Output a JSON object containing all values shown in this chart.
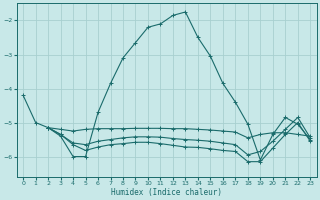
{
  "xlabel": "Humidex (Indice chaleur)",
  "xlim": [
    -0.5,
    23.5
  ],
  "ylim": [
    -6.6,
    -1.5
  ],
  "yticks": [
    -6,
    -5,
    -4,
    -3,
    -2
  ],
  "xticks": [
    0,
    1,
    2,
    3,
    4,
    5,
    6,
    7,
    8,
    9,
    10,
    11,
    12,
    13,
    14,
    15,
    16,
    17,
    18,
    19,
    20,
    21,
    22,
    23
  ],
  "bg_color": "#c8e8e8",
  "line_color": "#1a6b6b",
  "grid_color": "#a8d0d0",
  "lines": [
    {
      "x": [
        0,
        1,
        2,
        3,
        4,
        5,
        6,
        7,
        8,
        9,
        10,
        11,
        12,
        13,
        14,
        15,
        16,
        17,
        18,
        19,
        20,
        21,
        22,
        23
      ],
      "y": [
        -4.2,
        -5.0,
        -5.15,
        -5.4,
        -6.0,
        -6.0,
        -4.7,
        -3.85,
        -3.1,
        -2.65,
        -2.2,
        -2.1,
        -1.85,
        -1.75,
        -2.5,
        -3.05,
        -3.85,
        -4.4,
        -5.05,
        -6.1,
        -5.35,
        -4.85,
        -5.05,
        -5.5
      ]
    },
    {
      "x": [
        2,
        3,
        4,
        5,
        6,
        7,
        8,
        9,
        10,
        11,
        12,
        13,
        14,
        15,
        16,
        17,
        18,
        19,
        20,
        21,
        22,
        23
      ],
      "y": [
        -5.15,
        -5.2,
        -5.25,
        -5.2,
        -5.18,
        -5.18,
        -5.18,
        -5.17,
        -5.17,
        -5.17,
        -5.18,
        -5.18,
        -5.2,
        -5.22,
        -5.25,
        -5.28,
        -5.45,
        -5.35,
        -5.3,
        -5.3,
        -5.35,
        -5.4
      ]
    },
    {
      "x": [
        2,
        3,
        4,
        5,
        6,
        7,
        8,
        9,
        10,
        11,
        12,
        13,
        14,
        15,
        16,
        17,
        18,
        19,
        20,
        21,
        22,
        23
      ],
      "y": [
        -5.15,
        -5.35,
        -5.6,
        -5.65,
        -5.55,
        -5.5,
        -5.45,
        -5.42,
        -5.42,
        -5.43,
        -5.47,
        -5.5,
        -5.52,
        -5.55,
        -5.6,
        -5.65,
        -5.95,
        -5.85,
        -5.55,
        -5.2,
        -4.85,
        -5.45
      ]
    },
    {
      "x": [
        2,
        3,
        4,
        5,
        6,
        7,
        8,
        9,
        10,
        11,
        12,
        13,
        14,
        15,
        16,
        17,
        18,
        19,
        20,
        21,
        22,
        23
      ],
      "y": [
        -5.15,
        -5.35,
        -5.65,
        -5.82,
        -5.72,
        -5.65,
        -5.62,
        -5.58,
        -5.58,
        -5.62,
        -5.67,
        -5.72,
        -5.73,
        -5.77,
        -5.82,
        -5.85,
        -6.15,
        -6.15,
        -5.75,
        -5.35,
        -5.0,
        -5.55
      ]
    }
  ]
}
